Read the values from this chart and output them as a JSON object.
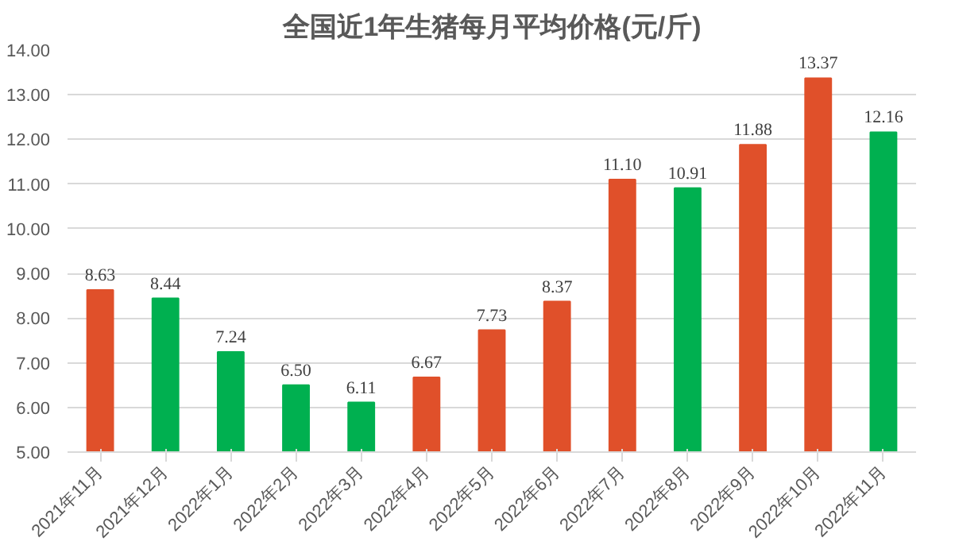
{
  "chart_data": {
    "type": "bar",
    "title": "全国近1年生猪每月平均价格(元/斤)",
    "categories": [
      "2021年11月",
      "2021年12月",
      "2022年1月",
      "2022年2月",
      "2022年3月",
      "2022年4月",
      "2022年5月",
      "2022年6月",
      "2022年7月",
      "2022年8月",
      "2022年9月",
      "2022年10月",
      "2022年11月"
    ],
    "values": [
      8.63,
      8.44,
      7.24,
      6.5,
      6.11,
      6.67,
      7.73,
      8.37,
      11.1,
      10.91,
      11.88,
      13.37,
      12.16
    ],
    "value_labels": [
      "8.63",
      "8.44",
      "7.24",
      "6.50",
      "6.11",
      "6.67",
      "7.73",
      "8.37",
      "11.10",
      "10.91",
      "11.88",
      "13.37",
      "12.16"
    ],
    "colors": [
      "#e0502a",
      "#00b050",
      "#00b050",
      "#00b050",
      "#00b050",
      "#e0502a",
      "#e0502a",
      "#e0502a",
      "#e0502a",
      "#00b050",
      "#e0502a",
      "#e0502a",
      "#00b050"
    ],
    "ylim": [
      5,
      14
    ],
    "yticks": [
      {
        "value": 5,
        "label": "5.00"
      },
      {
        "value": 6,
        "label": "6.00"
      },
      {
        "value": 7,
        "label": "7.00"
      },
      {
        "value": 8,
        "label": "8.00"
      },
      {
        "value": 9,
        "label": "9.00"
      },
      {
        "value": 10,
        "label": "10.00"
      },
      {
        "value": 11,
        "label": "11.00"
      },
      {
        "value": 12,
        "label": "12.00"
      },
      {
        "value": 13,
        "label": "13.00"
      },
      {
        "value": 14,
        "label": "14.00"
      }
    ],
    "grid": "y"
  }
}
